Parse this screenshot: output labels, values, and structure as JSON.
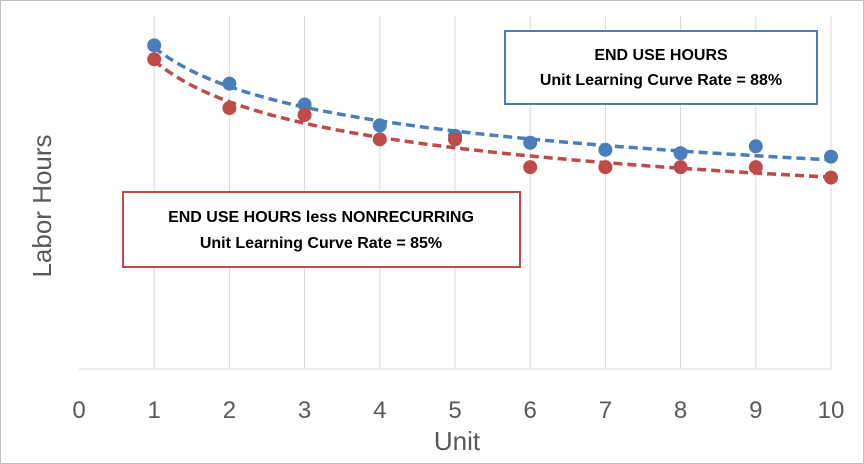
{
  "chart_data": {
    "type": "scatter",
    "title": "",
    "xlabel": "Unit",
    "ylabel": "Labor Hours",
    "xlim": [
      0,
      10
    ],
    "ylim": [
      0,
      1
    ],
    "x_ticks": [
      "0",
      "1",
      "2",
      "3",
      "4",
      "5",
      "6",
      "7",
      "8",
      "9",
      "10"
    ],
    "y_tick_labels_shown": false,
    "grid": "vertical",
    "series": [
      {
        "color": "#4a7ebb",
        "trendline": "power",
        "x": [
          1,
          2,
          3,
          4,
          5,
          6,
          7,
          8,
          9,
          10
        ],
        "y": [
          0.93,
          0.82,
          0.76,
          0.7,
          0.67,
          0.65,
          0.63,
          0.62,
          0.64,
          0.61
        ],
        "annotation": [
          "END USE HOURS",
          "Unit Learning Curve Rate = 88%"
        ]
      },
      {
        "color": "#be4b48",
        "trendline": "power",
        "x": [
          1,
          2,
          3,
          4,
          5,
          6,
          7,
          8,
          9,
          10
        ],
        "y": [
          0.89,
          0.75,
          0.73,
          0.66,
          0.66,
          0.58,
          0.58,
          0.58,
          0.58,
          0.55
        ],
        "annotation": [
          "END USE HOURS less NONRECURRING",
          "Unit Learning Curve Rate = 85%"
        ]
      }
    ]
  }
}
